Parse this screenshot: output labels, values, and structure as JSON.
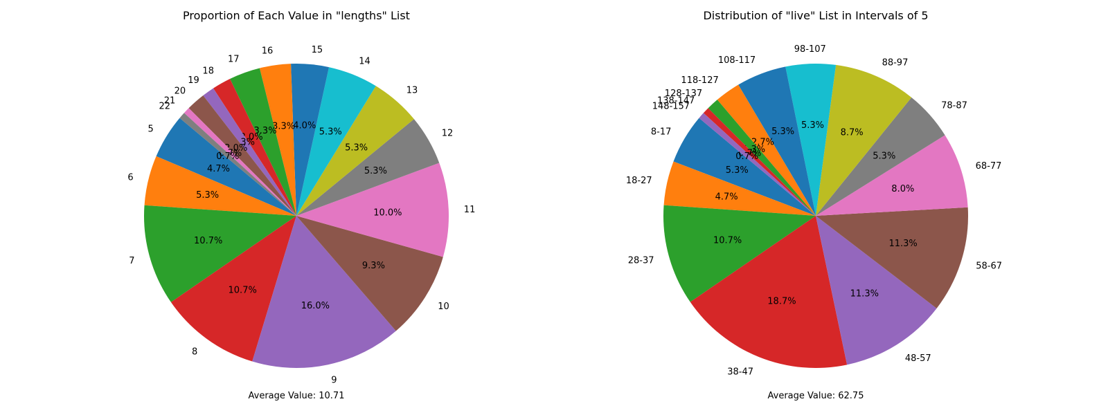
{
  "chart_data": [
    {
      "type": "pie",
      "title": "Proportion of Each Value in \"lengths\" List",
      "footer": "Average Value: 10.71",
      "start_angle_deg": 140,
      "direction": "counterclockwise",
      "labels": [
        "5",
        "6",
        "7",
        "8",
        "9",
        "10",
        "11",
        "12",
        "13",
        "14",
        "15",
        "16",
        "17",
        "18",
        "19",
        "20",
        "21",
        "22"
      ],
      "values": [
        4.7,
        5.3,
        10.7,
        10.7,
        16.0,
        9.3,
        10.0,
        5.3,
        5.3,
        5.3,
        4.0,
        3.3,
        3.3,
        2.0,
        1.3,
        2.0,
        0.7,
        0.7
      ],
      "pct_labels": [
        "4.7%",
        "5.3%",
        "10.7%",
        "10.7%",
        "16.0%",
        "9.3%",
        "10.0%",
        "5.3%",
        "5.3%",
        "5.3%",
        "4.0%",
        "3.3%",
        "3.3%",
        "2.0%",
        "1.3%",
        "2.0%",
        "0.7%",
        "0.7%"
      ],
      "colors": [
        "#1f77b4",
        "#ff7f0e",
        "#2ca02c",
        "#d62728",
        "#9467bd",
        "#8c564b",
        "#e377c2",
        "#7f7f7f",
        "#bcbd22",
        "#17becf",
        "#1f77b4",
        "#ff7f0e",
        "#2ca02c",
        "#d62728",
        "#9467bd",
        "#8c564b",
        "#e377c2",
        "#7f7f7f"
      ]
    },
    {
      "type": "pie",
      "title": "Distribution of \"live\" List in Intervals of 5",
      "footer": "Average Value: 62.75",
      "start_angle_deg": 140,
      "direction": "counterclockwise",
      "labels": [
        "8-17",
        "18-27",
        "28-37",
        "38-47",
        "48-57",
        "58-67",
        "68-77",
        "78-87",
        "88-97",
        "98-107",
        "108-117",
        "118-127",
        "128-137",
        "138-147",
        "148-157"
      ],
      "values": [
        5.3,
        4.7,
        10.7,
        18.7,
        11.3,
        11.3,
        8.0,
        5.3,
        8.7,
        5.3,
        5.3,
        2.7,
        1.3,
        0.7,
        0.7
      ],
      "pct_labels": [
        "5.3%",
        "4.7%",
        "10.7%",
        "18.7%",
        "11.3%",
        "11.3%",
        "8.0%",
        "5.3%",
        "8.7%",
        "5.3%",
        "5.3%",
        "2.7%",
        "1.3%",
        "0.7%",
        "0.7%"
      ],
      "colors": [
        "#1f77b4",
        "#ff7f0e",
        "#2ca02c",
        "#d62728",
        "#9467bd",
        "#8c564b",
        "#e377c2",
        "#7f7f7f",
        "#bcbd22",
        "#17becf",
        "#1f77b4",
        "#ff7f0e",
        "#2ca02c",
        "#d62728",
        "#9467bd"
      ]
    }
  ]
}
